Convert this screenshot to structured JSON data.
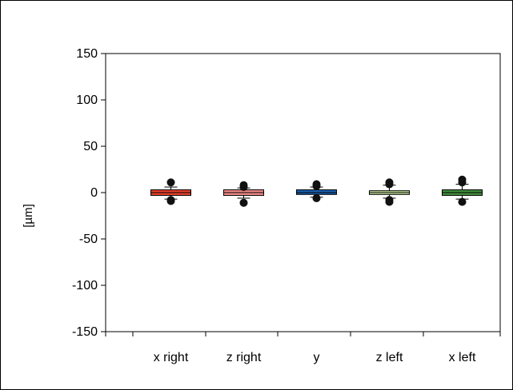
{
  "chart_data": {
    "type": "box",
    "ylabel": "[µm]",
    "ylim": [
      -150,
      150
    ],
    "yticks": [
      150,
      100,
      50,
      0,
      -50,
      -100,
      -150
    ],
    "categories": [
      "x right",
      "z right",
      "y",
      "z left",
      "x left"
    ],
    "boxes": [
      {
        "name": "x right",
        "color": "#e8402a",
        "q1": -3,
        "median": 0,
        "q3": 3,
        "whisker_low": -7,
        "whisker_high": 6,
        "outliers": [
          11,
          -8,
          -9
        ]
      },
      {
        "name": "z right",
        "color": "#f08a88",
        "q1": -3,
        "median": 0,
        "q3": 3,
        "whisker_low": -6,
        "whisker_high": 5,
        "outliers": [
          8,
          6,
          -11
        ]
      },
      {
        "name": "y",
        "color": "#1b5fb0",
        "q1": -2,
        "median": 0,
        "q3": 3,
        "whisker_low": -5,
        "whisker_high": 6,
        "outliers": [
          9,
          7,
          -6
        ]
      },
      {
        "name": "z left",
        "color": "#c9e6a0",
        "q1": -2,
        "median": 0,
        "q3": 2,
        "whisker_low": -6,
        "whisker_high": 8,
        "outliers": [
          11,
          9,
          -8,
          -10
        ]
      },
      {
        "name": "x left",
        "color": "#3f8f3f",
        "q1": -3,
        "median": 0,
        "q3": 3,
        "whisker_low": -7,
        "whisker_high": 9,
        "outliers": [
          14,
          11,
          -10
        ]
      }
    ]
  }
}
